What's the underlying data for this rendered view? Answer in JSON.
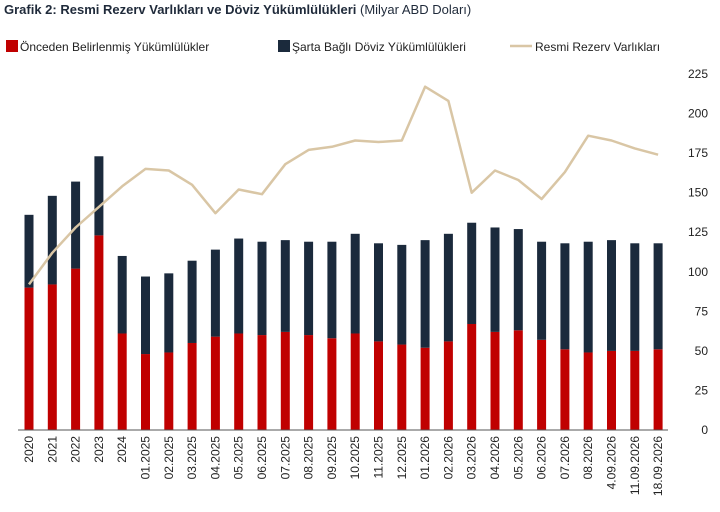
{
  "title": {
    "bold": "Grafik 2: Resmi Rezerv Varlıkları ve Döviz Yükümlülükleri",
    "unit": "(Milyar ABD Doları)"
  },
  "chart_data": {
    "type": "bar",
    "categories": [
      "2020",
      "2021",
      "2022",
      "2023",
      "2024",
      "01.2025",
      "02.2025",
      "03.2025",
      "04.2025",
      "05.2025",
      "06.2025",
      "07.2025",
      "08.2025",
      "09.2025",
      "10.2025",
      "11.2025",
      "12.2025",
      "01.2026",
      "02.2026",
      "03.2026",
      "04.2026",
      "05.2026",
      "06.2026",
      "07.2026",
      "08.2026",
      "4.09.2026",
      "11.09.2026",
      "18.09.2026"
    ],
    "series": [
      {
        "name": "Önceden Belirlenmiş Yükümlülükler",
        "kind": "bar-stacked",
        "color": "#c00000",
        "values": [
          90,
          92,
          102,
          123,
          61,
          48,
          49,
          55,
          59,
          61,
          60,
          62,
          60,
          58,
          61,
          56,
          54,
          52,
          56,
          67,
          62,
          63,
          57,
          51,
          49,
          50,
          50,
          51
        ]
      },
      {
        "name": "Şarta Bağlı Döviz Yükümlülükleri",
        "kind": "bar-stacked",
        "color": "#1b2a3c",
        "values": [
          46,
          56,
          55,
          50,
          49,
          49,
          50,
          52,
          55,
          60,
          59,
          58,
          59,
          61,
          63,
          62,
          63,
          68,
          68,
          64,
          66,
          64,
          62,
          67,
          70,
          70,
          68,
          67
        ]
      },
      {
        "name": "Resmi Rezerv Varlıkları",
        "kind": "line",
        "color": "#d9c6a5",
        "values": [
          92,
          112,
          128,
          141,
          154,
          165,
          164,
          155,
          137,
          152,
          149,
          168,
          177,
          179,
          183,
          182,
          183,
          217,
          208,
          150,
          164,
          158,
          146,
          163,
          186,
          183,
          178,
          174
        ]
      }
    ],
    "y_axis": {
      "position": "right",
      "ylim": [
        0,
        225
      ],
      "ticks": [
        "0",
        "25",
        "50",
        "75",
        "100",
        "125",
        "150",
        "175",
        "200",
        "225"
      ]
    },
    "grid": false,
    "legend": "top"
  }
}
